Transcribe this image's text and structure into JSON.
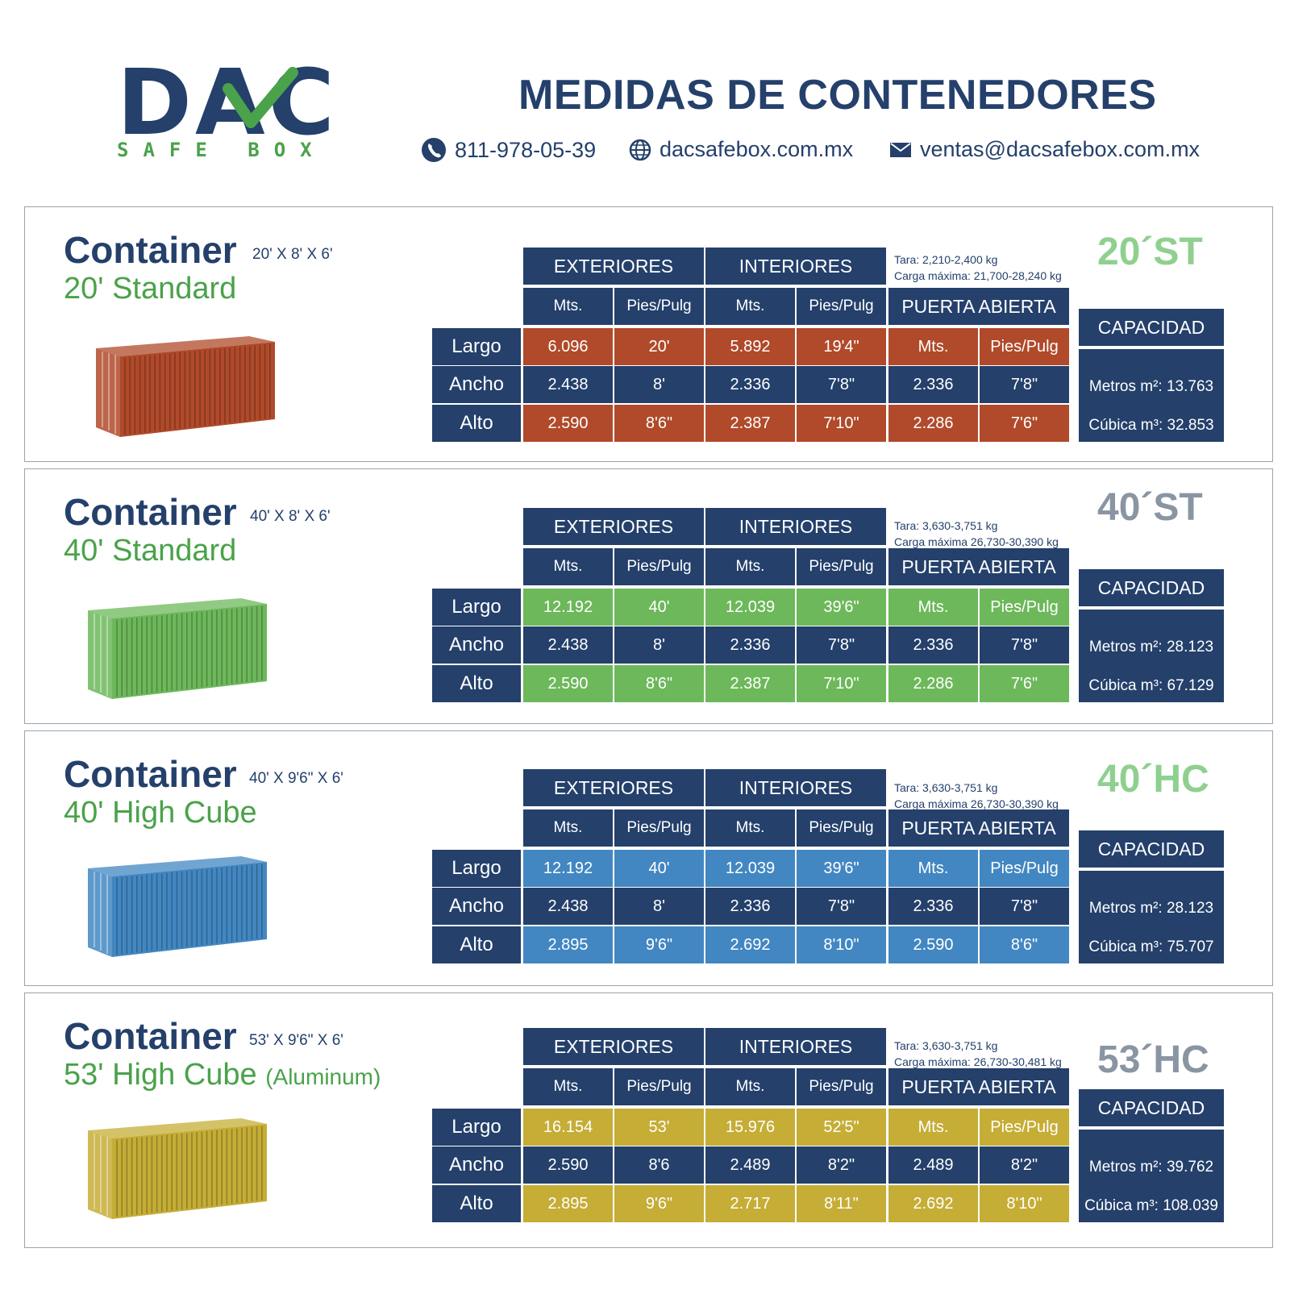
{
  "header": {
    "logo_word": "DAC",
    "logo_sub": "SAFE BOX",
    "title": "MEDIDAS DE CONTENEDORES",
    "phone": "811-978-05-39",
    "website": "dacsafebox.com.mx",
    "email": "ventas@dacsafebox.com.mx"
  },
  "table_headers": {
    "exteriores": "EXTERIORES",
    "interiores": "INTERIORES",
    "mts": "Mts.",
    "pies": "Pies/Pulg",
    "puerta": "PUERTA ABIERTA",
    "capacidad": "CAPACIDAD",
    "largo": "Largo",
    "ancho": "Ancho",
    "alto": "Alto"
  },
  "sections": [
    {
      "container": "Container",
      "dims": "20' X 8' X 6'",
      "subtitle": "20' Standard",
      "subtitle_suffix": "",
      "code": "20´ST",
      "code_color": "#8fd08f",
      "accent": "#b04a2a",
      "tara": "Tara: 2,210-2,400 kg",
      "carga": "Carga máxima: 21,700-28,240 kg",
      "largo": [
        "6.096",
        "20'",
        "5.892",
        "19'4\"",
        "Mts.",
        "Pies/Pulg"
      ],
      "ancho": [
        "2.438",
        "8'",
        "2.336",
        "7'8\"",
        "2.336",
        "7'8\""
      ],
      "alto": [
        "2.590",
        "8'6\"",
        "2.387",
        "7'10\"",
        "2.286",
        "7'6\""
      ],
      "metros": "Metros m²: 13.763",
      "cubica": "Cúbica m³: 32.853"
    },
    {
      "container": "Container",
      "dims": "40' X 8' X 6'",
      "subtitle": "40' Standard",
      "subtitle_suffix": "",
      "code": "40´ST",
      "code_color": "#8a95a3",
      "accent": "#6cb85a",
      "tara": "Tara: 3,630-3,751 kg",
      "carga": "Carga máxima 26,730-30,390 kg",
      "largo": [
        "12.192",
        "40'",
        "12.039",
        "39'6\"",
        "Mts.",
        "Pies/Pulg"
      ],
      "ancho": [
        "2.438",
        "8'",
        "2.336",
        "7'8\"",
        "2.336",
        "7'8\""
      ],
      "alto": [
        "2.590",
        "8'6\"",
        "2.387",
        "7'10\"",
        "2.286",
        "7'6\""
      ],
      "metros": "Metros m²: 28.123",
      "cubica": "Cúbica m³: 67.129"
    },
    {
      "container": "Container",
      "dims": "40' X 9'6\" X 6'",
      "subtitle": "40' High Cube",
      "subtitle_suffix": "",
      "code": "40´HC",
      "code_color": "#8fd08f",
      "accent": "#4287c2",
      "tara": "Tara: 3,630-3,751 kg",
      "carga": "Carga máxima 26,730-30,390 kg",
      "largo": [
        "12.192",
        "40'",
        "12.039",
        "39'6\"",
        "Mts.",
        "Pies/Pulg"
      ],
      "ancho": [
        "2.438",
        "8'",
        "2.336",
        "7'8\"",
        "2.336",
        "7'8\""
      ],
      "alto": [
        "2.895",
        "9'6\"",
        "2.692",
        "8'10\"",
        "2.590",
        "8'6\""
      ],
      "metros": "Metros m²: 28.123",
      "cubica": "Cúbica m³: 75.707"
    },
    {
      "container": "Container",
      "dims": "53' X 9'6\" X 6'",
      "subtitle": "53' High Cube",
      "subtitle_suffix": "(Aluminum)",
      "code": "53´HC",
      "code_color": "#8a95a3",
      "accent": "#c5ad36",
      "tara": "Tara: 3,630-3,751 kg",
      "carga": "Carga máxima: 26,730-30,481 kg",
      "largo": [
        "16.154",
        "53'",
        "15.976",
        "52'5\"",
        "Mts.",
        "Pies/Pulg"
      ],
      "ancho": [
        "2.590",
        "8'6",
        "2.489",
        "8'2\"",
        "2.489",
        "8'2\""
      ],
      "alto": [
        "2.895",
        "9'6\"",
        "2.717",
        "8'11\"",
        "2.692",
        "8'10\""
      ],
      "metros": "Metros m²: 39.762",
      "cubica": "Cúbica m³: 108.039"
    }
  ]
}
